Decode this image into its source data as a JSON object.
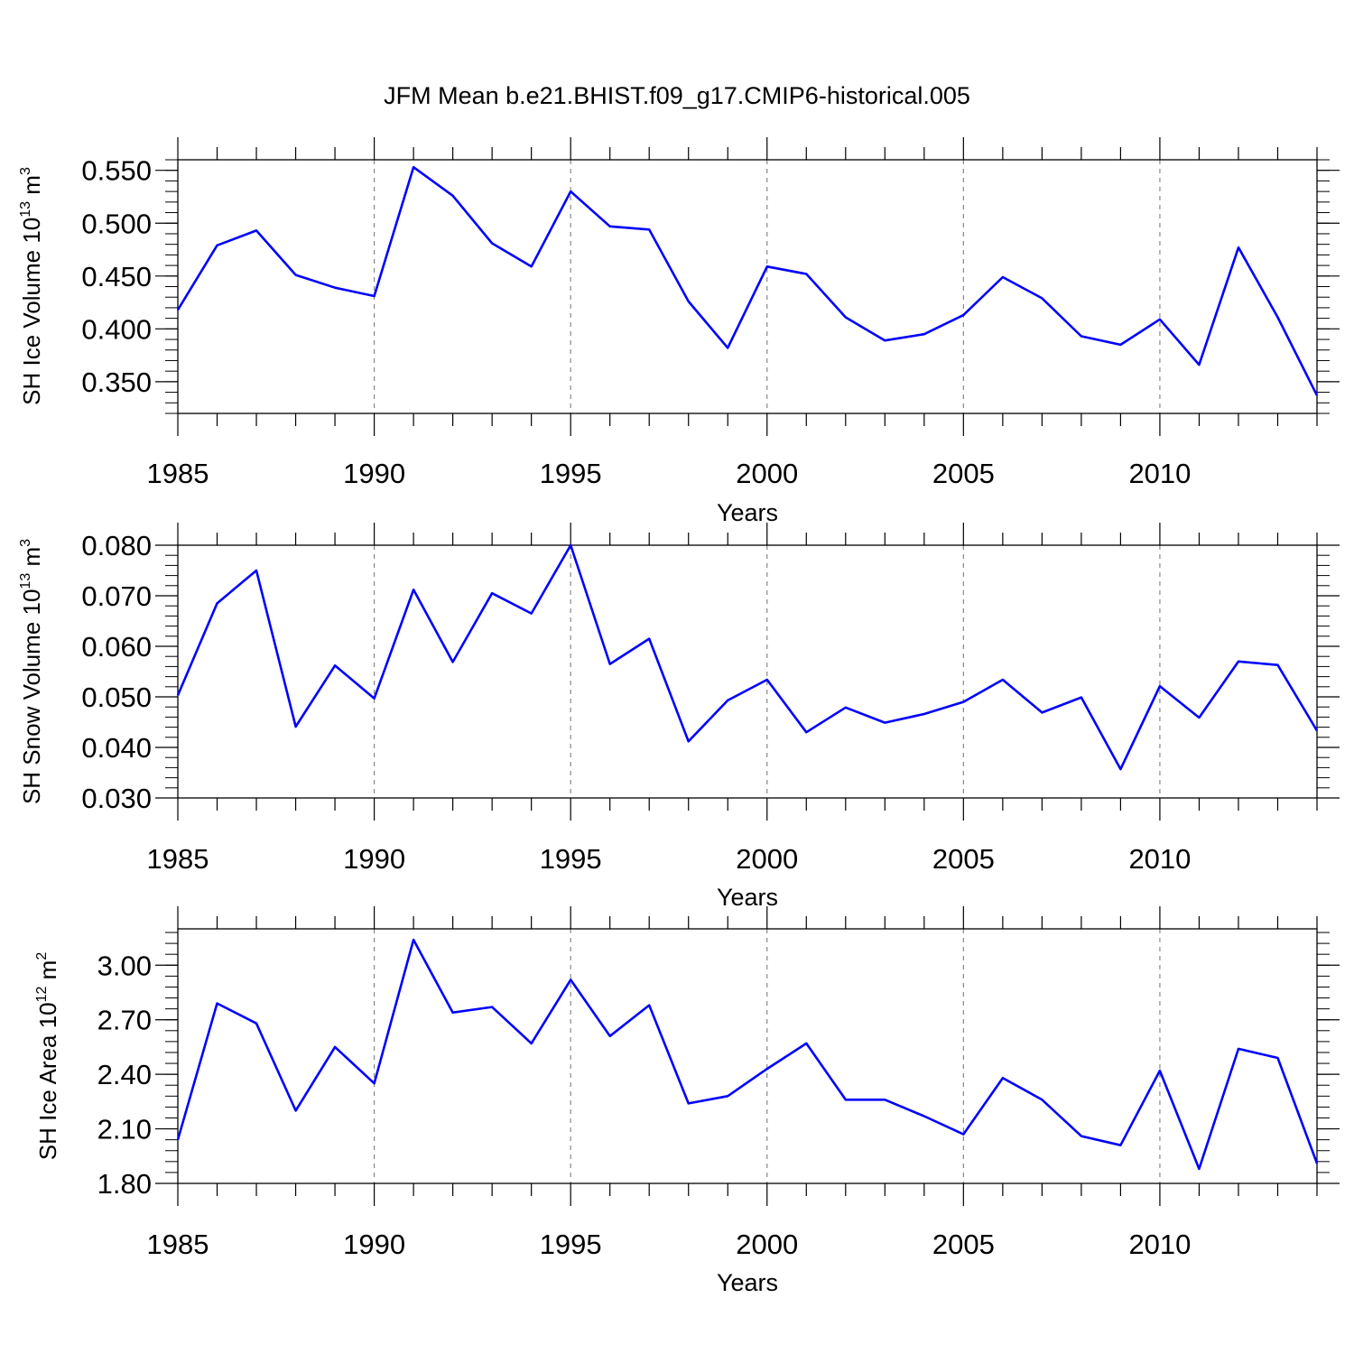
{
  "title": "JFM Mean b.e21.BHIST.f09_g17.CMIP6-historical.005",
  "colors": {
    "line": "#0000ff",
    "axis": "#000000",
    "grid": "#888888"
  },
  "chart_data": [
    {
      "type": "line",
      "title": "JFM Mean b.e21.BHIST.f09_g17.CMIP6-historical.005",
      "xlabel": "Years",
      "ylabel": {
        "prefix": "SH Ice Volume 10",
        "exp1": "13",
        "mid": " m",
        "exp2": "3"
      },
      "xlim": [
        1985,
        2014
      ],
      "ylim": [
        0.32,
        0.56
      ],
      "xticks": [
        1985,
        1990,
        1995,
        2000,
        2005,
        2010
      ],
      "xtick_labels": [
        "1985",
        "1990",
        "1995",
        "2000",
        "2005",
        "2010"
      ],
      "yticks": [
        0.35,
        0.4,
        0.45,
        0.5,
        0.55
      ],
      "ytick_labels": [
        "0.350",
        "0.400",
        "0.450",
        "0.500",
        "0.550"
      ],
      "y_minor_step": 0.01,
      "x": [
        1985,
        1986,
        1987,
        1988,
        1989,
        1990,
        1991,
        1992,
        1993,
        1994,
        1995,
        1996,
        1997,
        1998,
        1999,
        2000,
        2001,
        2002,
        2003,
        2004,
        2005,
        2006,
        2007,
        2008,
        2009,
        2010,
        2011,
        2012,
        2013,
        2014
      ],
      "series": [
        {
          "name": "SH Ice Volume",
          "values": [
            0.418,
            0.479,
            0.493,
            0.451,
            0.439,
            0.431,
            0.553,
            0.526,
            0.481,
            0.459,
            0.53,
            0.497,
            0.494,
            0.426,
            0.382,
            0.459,
            0.452,
            0.411,
            0.389,
            0.395,
            0.413,
            0.449,
            0.429,
            0.393,
            0.385,
            0.409,
            0.366,
            0.477,
            0.411,
            0.337
          ]
        }
      ]
    },
    {
      "type": "line",
      "xlabel": "Years",
      "ylabel": {
        "prefix": "SH Snow Volume 10",
        "exp1": "13",
        "mid": " m",
        "exp2": "3"
      },
      "xlim": [
        1985,
        2014
      ],
      "ylim": [
        0.03,
        0.08
      ],
      "xticks": [
        1985,
        1990,
        1995,
        2000,
        2005,
        2010
      ],
      "xtick_labels": [
        "1985",
        "1990",
        "1995",
        "2000",
        "2005",
        "2010"
      ],
      "yticks": [
        0.03,
        0.04,
        0.05,
        0.06,
        0.07,
        0.08
      ],
      "ytick_labels": [
        "0.030",
        "0.040",
        "0.050",
        "0.060",
        "0.070",
        "0.080"
      ],
      "y_minor_step": 0.002,
      "x": [
        1985,
        1986,
        1987,
        1988,
        1989,
        1990,
        1991,
        1992,
        1993,
        1994,
        1995,
        1996,
        1997,
        1998,
        1999,
        2000,
        2001,
        2002,
        2003,
        2004,
        2005,
        2006,
        2007,
        2008,
        2009,
        2010,
        2011,
        2012,
        2013,
        2014
      ],
      "series": [
        {
          "name": "SH Snow Volume",
          "values": [
            0.0503,
            0.0685,
            0.075,
            0.0441,
            0.0562,
            0.0497,
            0.0712,
            0.0569,
            0.0705,
            0.0665,
            0.08,
            0.0565,
            0.0615,
            0.0412,
            0.0493,
            0.0534,
            0.043,
            0.0479,
            0.0449,
            0.0466,
            0.049,
            0.0534,
            0.0469,
            0.0499,
            0.0357,
            0.0521,
            0.0459,
            0.057,
            0.0563,
            0.0433
          ]
        }
      ]
    },
    {
      "type": "line",
      "xlabel": "Years",
      "ylabel": {
        "prefix": "SH Ice Area 10",
        "exp1": "12",
        "mid": " m",
        "exp2": "2"
      },
      "xlim": [
        1985,
        2014
      ],
      "ylim": [
        1.8,
        3.2
      ],
      "xticks": [
        1985,
        1990,
        1995,
        2000,
        2005,
        2010
      ],
      "xtick_labels": [
        "1985",
        "1990",
        "1995",
        "2000",
        "2005",
        "2010"
      ],
      "yticks": [
        1.8,
        2.1,
        2.4,
        2.7,
        3.0
      ],
      "ytick_labels": [
        "1.80",
        "2.10",
        "2.40",
        "2.70",
        "3.00"
      ],
      "y_minor_step": 0.06,
      "x": [
        1985,
        1986,
        1987,
        1988,
        1989,
        1990,
        1991,
        1992,
        1993,
        1994,
        1995,
        1996,
        1997,
        1998,
        1999,
        2000,
        2001,
        2002,
        2003,
        2004,
        2005,
        2006,
        2007,
        2008,
        2009,
        2010,
        2011,
        2012,
        2013,
        2014
      ],
      "series": [
        {
          "name": "SH Ice Area",
          "values": [
            2.04,
            2.79,
            2.68,
            2.2,
            2.55,
            2.35,
            3.14,
            2.74,
            2.77,
            2.57,
            2.92,
            2.61,
            2.78,
            2.24,
            2.28,
            2.43,
            2.57,
            2.26,
            2.26,
            2.17,
            2.07,
            2.38,
            2.26,
            2.06,
            2.01,
            2.42,
            1.88,
            2.54,
            2.49,
            1.91
          ]
        }
      ]
    }
  ]
}
